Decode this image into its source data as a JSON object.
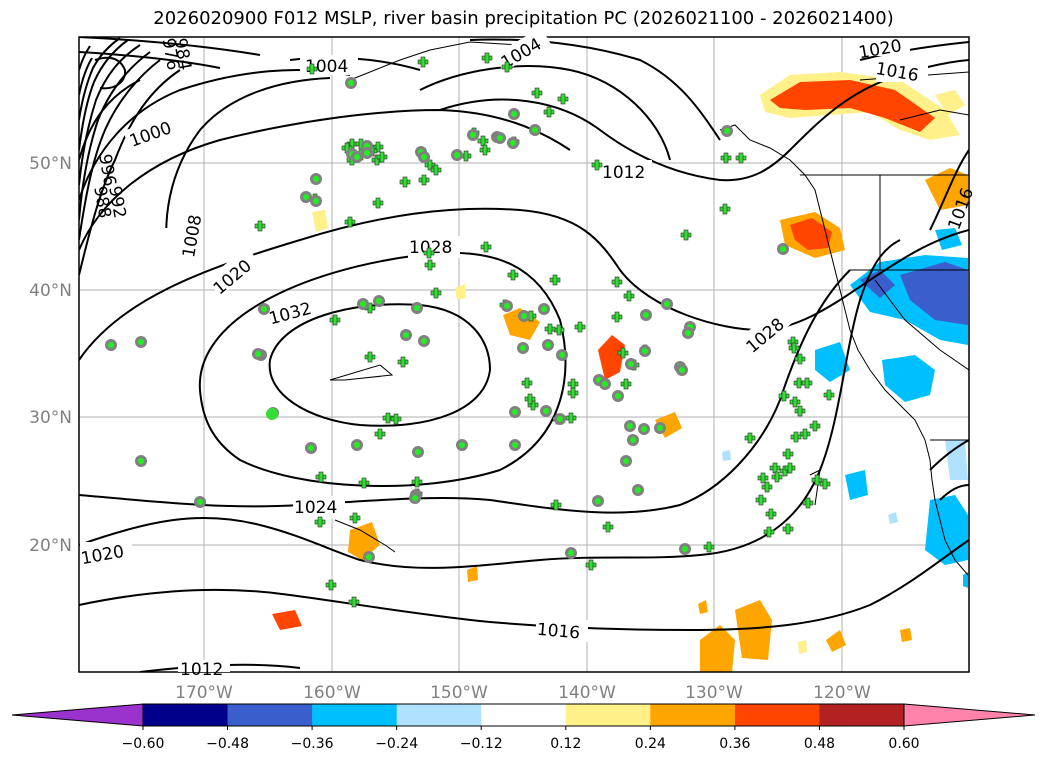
{
  "title": "2026020900 F012 MSLP, river basin precipitation PC (2026021100 - 2026021400)",
  "map": {
    "lon_labels": [
      "170°W",
      "160°W",
      "150°W",
      "140°W",
      "130°W",
      "120°W"
    ],
    "lat_labels": [
      "50°N",
      "40°N",
      "30°N",
      "20°N"
    ],
    "contour_labels": [
      "1004",
      "1004",
      "1000",
      "996",
      "992",
      "988",
      "984",
      "980",
      "976",
      "1008",
      "1012",
      "1016",
      "1016",
      "1020",
      "1020",
      "1020",
      "1024",
      "1028",
      "1028",
      "1032",
      "1016",
      "1012"
    ]
  },
  "colorbar": {
    "ticks": [
      "−0.60",
      "−0.48",
      "−0.36",
      "−0.24",
      "−0.12",
      "0.12",
      "0.24",
      "0.36",
      "0.48",
      "0.60"
    ],
    "colors": [
      "#9a32cd",
      "#00008b",
      "#3a5fcd",
      "#00bfff",
      "#b0e2ff",
      "#ffffff",
      "#fff08a",
      "#ffa500",
      "#ff4500",
      "#b22222",
      "#ff83aa"
    ]
  },
  "legend_markers": {
    "plus_color": "#33dd33",
    "dot_color": "#808080",
    "dot_center_color": "#22ee22"
  }
}
